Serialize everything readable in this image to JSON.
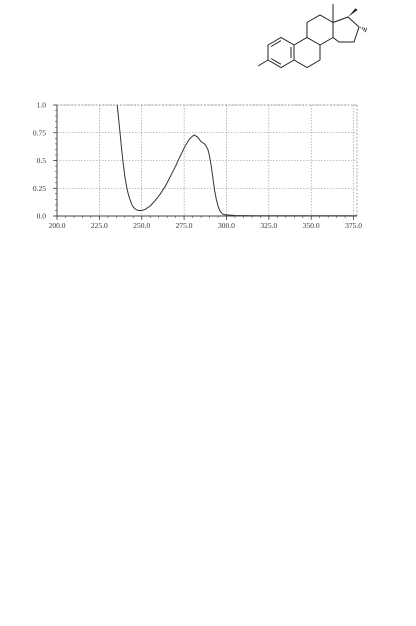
{
  "colors": {
    "curve": "#333333",
    "grid": "#8a8a8a",
    "axis": "#444444",
    "structure": "#222222"
  },
  "chart_data": {
    "type": "line",
    "title": "",
    "xlabel": "",
    "ylabel": "",
    "xlim": [
      200.0,
      377.0
    ],
    "ylim": [
      0.0,
      1.0
    ],
    "grid": true,
    "x_ticks": [
      200.0,
      225.0,
      250.0,
      275.0,
      300.0,
      325.0,
      350.0,
      375.0
    ],
    "x_tick_labels": [
      "200.0",
      "225.0",
      "250.0",
      "275.0",
      "300.0",
      "325.0",
      "350.0",
      "375.0"
    ],
    "y_ticks": [
      0.0,
      0.25,
      0.5,
      0.75,
      1.0
    ],
    "y_tick_labels": [
      "0.0",
      "0.25",
      "0.5",
      "0.75",
      "1.0"
    ],
    "series": [
      {
        "x": [
          235.5,
          236,
          237,
          238,
          239,
          240,
          241,
          242,
          243,
          244,
          245,
          246,
          247,
          248,
          249,
          250,
          252,
          255,
          258,
          261,
          264,
          267,
          270,
          273,
          276,
          278,
          280,
          281,
          282,
          283,
          284,
          285,
          286,
          287,
          288,
          289,
          290,
          291,
          292,
          293,
          294,
          295,
          296,
          297,
          298,
          300,
          305,
          310,
          320,
          340,
          360,
          377
        ],
        "y": [
          1.0,
          0.93,
          0.78,
          0.62,
          0.48,
          0.36,
          0.27,
          0.2,
          0.15,
          0.11,
          0.08,
          0.065,
          0.055,
          0.05,
          0.05,
          0.05,
          0.06,
          0.09,
          0.14,
          0.2,
          0.27,
          0.36,
          0.45,
          0.55,
          0.64,
          0.69,
          0.72,
          0.73,
          0.72,
          0.71,
          0.69,
          0.67,
          0.66,
          0.65,
          0.63,
          0.6,
          0.54,
          0.45,
          0.34,
          0.23,
          0.15,
          0.09,
          0.05,
          0.03,
          0.015,
          0.01,
          0.005,
          0.003,
          0.002,
          0.002,
          0.002,
          0.002
        ]
      }
    ]
  }
}
